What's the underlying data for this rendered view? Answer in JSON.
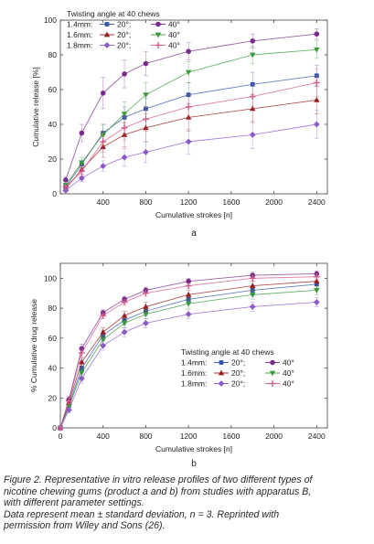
{
  "chart_data": [
    {
      "type": "line",
      "panel_label": "a",
      "xlabel": "Cumulative strokes [n]",
      "ylabel": "Cumulative release [%]",
      "xlim": [
        0,
        2500
      ],
      "ylim": [
        0,
        100
      ],
      "xticks": [
        0,
        400,
        800,
        1200,
        1600,
        2000,
        2400
      ],
      "xtick_labels": [
        "",
        "400",
        "800",
        "1200",
        "1600",
        "2000",
        "2400"
      ],
      "yticks": [
        0,
        20,
        40,
        60,
        80,
        100
      ],
      "ytick_labels": [
        "0",
        "20",
        "40",
        "60",
        "80",
        "100"
      ],
      "grid": false,
      "legend_title": "Twisting angle at 40 chews",
      "legend_rows": [
        "1.4mm:",
        "1.6mm:",
        "1.8mm:"
      ],
      "legend_position": "top-left",
      "x": [
        50,
        200,
        400,
        600,
        800,
        1200,
        1800,
        2400
      ],
      "series": [
        {
          "name": "20°",
          "row": 0,
          "color": "#3355aa",
          "marker": "square",
          "values": [
            4,
            17,
            35,
            44,
            49,
            57,
            63,
            68
          ],
          "errors": [
            1,
            2,
            5,
            6,
            6,
            7,
            7,
            6
          ]
        },
        {
          "name": "40°",
          "row": 0,
          "color": "#7a2a8a",
          "marker": "circle",
          "values": [
            8,
            35,
            58,
            69,
            75,
            82,
            88,
            92
          ],
          "errors": [
            2,
            5,
            9,
            8,
            7,
            5,
            4,
            3
          ]
        },
        {
          "name": "20°",
          "row": 1,
          "color": "#9b1c1c",
          "marker": "triangle-up",
          "values": [
            3,
            14,
            27,
            34,
            38,
            44,
            49,
            54
          ],
          "errors": [
            1,
            3,
            6,
            7,
            8,
            8,
            8,
            8
          ]
        },
        {
          "name": "40°",
          "row": 1,
          "color": "#3a9a3a",
          "marker": "triangle-down",
          "values": [
            5,
            18,
            34,
            46,
            57,
            70,
            80,
            83
          ],
          "errors": [
            1,
            3,
            6,
            7,
            7,
            6,
            5,
            5
          ]
        },
        {
          "name": "20°",
          "row": 2,
          "color": "#8a5ac8",
          "marker": "diamond",
          "values": [
            2,
            9,
            16,
            21,
            24,
            30,
            34,
            40
          ],
          "errors": [
            1,
            2,
            3,
            5,
            6,
            7,
            8,
            8
          ]
        },
        {
          "name": "40°",
          "row": 2,
          "color": "#d25a8a",
          "marker": "plus",
          "values": [
            4,
            13,
            30,
            38,
            43,
            50,
            56,
            64
          ],
          "errors": [
            1,
            3,
            6,
            7,
            7,
            7,
            7,
            8
          ]
        }
      ]
    },
    {
      "type": "line",
      "panel_label": "b",
      "xlabel": "Cumulative strokes [n]",
      "ylabel": "% Cumulative drug release",
      "xlim": [
        0,
        2500
      ],
      "ylim": [
        0,
        110
      ],
      "xticks": [
        0,
        400,
        800,
        1200,
        1600,
        2000,
        2400
      ],
      "xtick_labels": [
        "0",
        "400",
        "800",
        "1200",
        "1600",
        "2000",
        "2400"
      ],
      "yticks": [
        0,
        20,
        40,
        60,
        80,
        100
      ],
      "ytick_labels": [
        "0",
        "20",
        "40",
        "60",
        "80",
        "100"
      ],
      "grid": false,
      "legend_title": "Twisting angle at 40 chews",
      "legend_rows": [
        "1.4mm:",
        "1.6mm:",
        "1.8mm:"
      ],
      "legend_position": "center-right",
      "x": [
        0,
        80,
        200,
        400,
        600,
        800,
        1200,
        1800,
        2400
      ],
      "series": [
        {
          "name": "20°",
          "row": 0,
          "color": "#3355aa",
          "marker": "square",
          "values": [
            0,
            15,
            40,
            62,
            72,
            78,
            86,
            92,
            96
          ],
          "errors": [
            0,
            2,
            3,
            3,
            3,
            3,
            3,
            3,
            3
          ]
        },
        {
          "name": "40°",
          "row": 0,
          "color": "#7a2a8a",
          "marker": "circle",
          "values": [
            0,
            19,
            53,
            77,
            86,
            92,
            98,
            102,
            103
          ],
          "errors": [
            0,
            2,
            3,
            2,
            2,
            2,
            2,
            2,
            2
          ]
        },
        {
          "name": "20°",
          "row": 1,
          "color": "#9b1c1c",
          "marker": "triangle-up",
          "values": [
            0,
            17,
            44,
            64,
            75,
            81,
            89,
            95,
            98
          ],
          "errors": [
            0,
            2,
            3,
            3,
            3,
            3,
            3,
            3,
            3
          ]
        },
        {
          "name": "40°",
          "row": 1,
          "color": "#3a9a3a",
          "marker": "triangle-down",
          "values": [
            0,
            14,
            37,
            59,
            70,
            76,
            83,
            89,
            92
          ],
          "errors": [
            0,
            2,
            3,
            3,
            3,
            3,
            3,
            3,
            3
          ]
        },
        {
          "name": "20°",
          "row": 2,
          "color": "#8a5ac8",
          "marker": "diamond",
          "values": [
            0,
            12,
            33,
            55,
            64,
            70,
            76,
            81,
            84
          ],
          "errors": [
            0,
            2,
            3,
            3,
            3,
            3,
            3,
            3,
            3
          ]
        },
        {
          "name": "40°",
          "row": 2,
          "color": "#d25a8a",
          "marker": "plus",
          "values": [
            0,
            18,
            50,
            75,
            84,
            90,
            95,
            100,
            101
          ],
          "errors": [
            0,
            2,
            3,
            2,
            2,
            2,
            2,
            2,
            2
          ]
        }
      ]
    }
  ],
  "caption": {
    "line1": "Figure 2. Representative in vitro release profiles of two different types of",
    "line2": "nicotine chewing gums (product a and b) from studies with apparatus B,",
    "line3": "with different parameter settings.",
    "line4": "Data represent mean ± standard deviation, n = 3. Reprinted with",
    "line5": "permission from Wiley and Sons (26)."
  }
}
